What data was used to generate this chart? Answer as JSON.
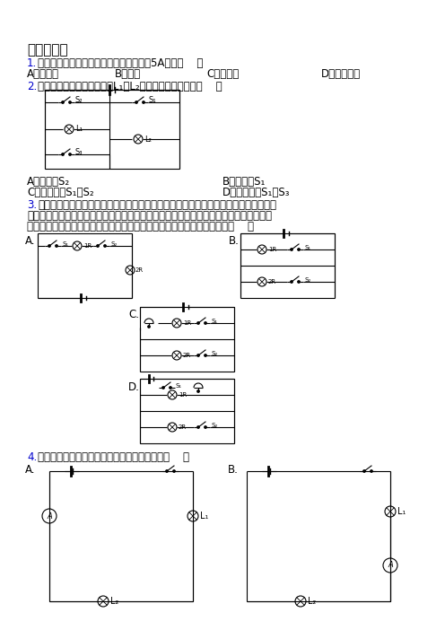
{
  "background": "#ffffff",
  "title": "一、选择题",
  "blue": "#0000cd",
  "black": "#000000",
  "q1_label": "1.",
  "q1_body": "下列家用电器中，正常工作时电流大约是5A的是（    ）",
  "q1_A": "A．收音机",
  "q1_B": "B．台灯",
  "q1_C": "C．电视机",
  "q1_D": "D．家用空调",
  "q2_label": "2.",
  "q2_body": "如图所示的电路，要使灯泡L₁和L₂组成串联电路，应该（    ）",
  "q2_A": "A．只闭合S₂",
  "q2_B": "B．只闭合S₁",
  "q2_C": "C．同时闭合S₁和S₂",
  "q2_D": "D．同时闭合S₁和S₃",
  "q3_label": "3.",
  "q3_line1": "如图所示，是某医院病房的呼叫系统简化电路图，要求当病人需要医护人员帮助时，可",
  "q3_line2": "以按下自己床头的开关，这时护士站的电铃就会响起提醒医护人员，医护人员根据灯泡的",
  "q3_line3": "亮灭就可以判断是哪位病人需要服务或者换药，下列电路图符合要求的是（    ）",
  "q4_label": "4.",
  "q4_body": "如图所示电路中，会损坏电流表的错误接法是（    ）"
}
